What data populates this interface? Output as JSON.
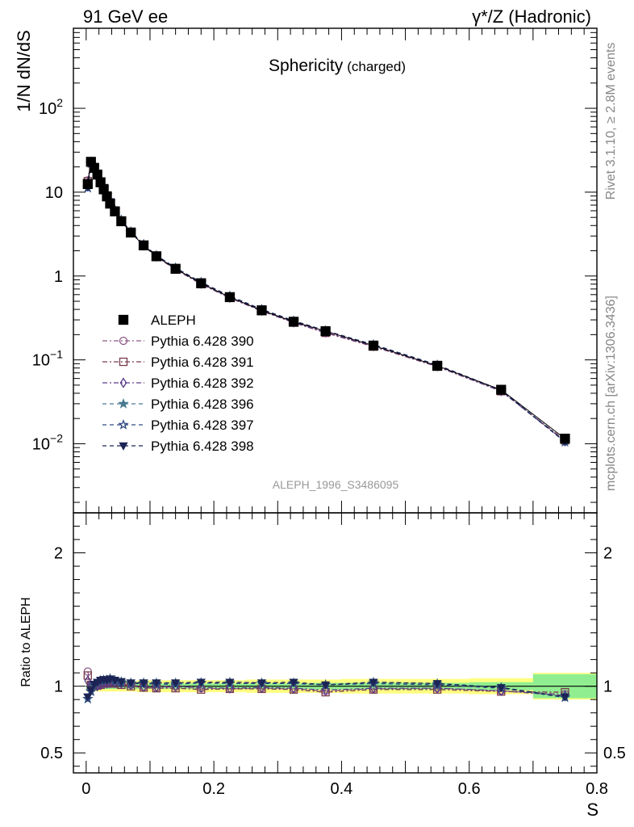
{
  "header": {
    "left": "91 GeV ee",
    "right": "γ*/Z (Hadronic)"
  },
  "side_text": {
    "rivet": "Rivet 3.1.10, ≥ 2.8M events",
    "mcplots": "mcplots.cern.ch [arXiv:1306.3436]"
  },
  "watermark": "ALEPH_1996_S3486095",
  "chart_data": [
    {
      "type": "scatter",
      "title": "Sphericity",
      "subtitle": "(charged)",
      "ylabel": "1/N dN/dS",
      "xlabel": "",
      "yscale": "log",
      "xlim": [
        -0.02,
        0.8
      ],
      "ylim": [
        0.0015,
        900
      ],
      "y_ticks": [
        0.01,
        0.1,
        1,
        10,
        100
      ],
      "y_tick_labels": [
        {
          "base": "10",
          "exp": "−2"
        },
        {
          "base": "10",
          "exp": "−1"
        },
        {
          "base": "1",
          "exp": ""
        },
        {
          "base": "10",
          "exp": ""
        },
        {
          "base": "10",
          "exp": "2"
        }
      ],
      "legend_placement": "middle-left",
      "x": [
        0.0025,
        0.0075,
        0.0125,
        0.0175,
        0.0225,
        0.0275,
        0.0325,
        0.0375,
        0.045,
        0.055,
        0.07,
        0.09,
        0.11,
        0.14,
        0.18,
        0.225,
        0.275,
        0.325,
        0.375,
        0.45,
        0.55,
        0.65,
        0.75
      ],
      "series": [
        {
          "name": "ALEPH",
          "color": "#000000",
          "marker": "filled-square",
          "dash": "",
          "values": [
            12.5,
            23,
            19.5,
            16.2,
            13.1,
            10.8,
            8.9,
            7.3,
            5.9,
            4.5,
            3.3,
            2.32,
            1.72,
            1.22,
            0.82,
            0.56,
            0.39,
            0.285,
            0.22,
            0.148,
            0.085,
            0.044,
            0.0115
          ]
        },
        {
          "name": "Pythia 6.428 390",
          "color": "#8e5a88",
          "marker": "open-circle",
          "dash": "6,3,2,3",
          "values": [
            13.8,
            23.3,
            19.6,
            16.4,
            13.3,
            11.1,
            9.2,
            7.6,
            6.1,
            4.6,
            3.34,
            2.32,
            1.7,
            1.21,
            0.81,
            0.55,
            0.385,
            0.28,
            0.212,
            0.145,
            0.084,
            0.0425,
            0.0108
          ]
        },
        {
          "name": "Pythia 6.428 391",
          "color": "#7a3c4e",
          "marker": "open-square",
          "dash": "6,3,2,3",
          "values": [
            13.5,
            23.2,
            19.5,
            16.3,
            13.2,
            11.0,
            9.1,
            7.5,
            6.0,
            4.55,
            3.3,
            2.3,
            1.69,
            1.2,
            0.8,
            0.548,
            0.382,
            0.278,
            0.21,
            0.144,
            0.083,
            0.0423,
            0.011
          ]
        },
        {
          "name": "Pythia 6.428 392",
          "color": "#5a3a8a",
          "marker": "open-diamond",
          "dash": "6,3,2,3",
          "values": [
            13.0,
            23.0,
            19.4,
            16.2,
            13.2,
            11.0,
            9.1,
            7.5,
            6.05,
            4.6,
            3.33,
            2.31,
            1.71,
            1.22,
            0.81,
            0.552,
            0.386,
            0.281,
            0.213,
            0.146,
            0.084,
            0.0425,
            0.0107
          ]
        },
        {
          "name": "Pythia 6.428 396",
          "color": "#4a7a90",
          "marker": "filled-star",
          "dash": "5,4",
          "values": [
            11.3,
            22.2,
            19.7,
            16.6,
            13.6,
            11.3,
            9.3,
            7.7,
            6.15,
            4.65,
            3.38,
            2.38,
            1.76,
            1.25,
            0.84,
            0.575,
            0.4,
            0.292,
            0.222,
            0.152,
            0.087,
            0.0435,
            0.0106
          ]
        },
        {
          "name": "Pythia 6.428 397",
          "color": "#2f4a80",
          "marker": "open-star",
          "dash": "5,4",
          "values": [
            11.2,
            22.0,
            19.6,
            16.6,
            13.6,
            11.3,
            9.3,
            7.7,
            6.1,
            4.62,
            3.36,
            2.37,
            1.75,
            1.24,
            0.84,
            0.572,
            0.398,
            0.29,
            0.222,
            0.151,
            0.086,
            0.0432,
            0.0105
          ]
        },
        {
          "name": "Pythia 6.428 398",
          "color": "#1c2455",
          "marker": "filled-down-triangle",
          "dash": "5,4",
          "values": [
            11.5,
            22.3,
            19.8,
            16.7,
            13.7,
            11.4,
            9.3,
            7.7,
            6.15,
            4.66,
            3.38,
            2.38,
            1.76,
            1.25,
            0.843,
            0.576,
            0.4,
            0.293,
            0.222,
            0.152,
            0.087,
            0.0434,
            0.0106
          ]
        }
      ]
    },
    {
      "type": "line",
      "ylabel": "Ratio to ALEPH",
      "xlabel": "S",
      "xlim": [
        -0.02,
        0.8
      ],
      "ylim": [
        0.35,
        2.3
      ],
      "y_ticks": [
        0.5,
        1,
        2
      ],
      "y_tick_labels": [
        "0.5",
        "1",
        "2"
      ],
      "x_ticks": [
        0,
        0.2,
        0.4,
        0.6,
        0.8
      ],
      "x_tick_labels": [
        "0",
        "0.2",
        "0.4",
        "0.6",
        "0.8"
      ],
      "bands": {
        "edges": [
          0,
          0.005,
          0.01,
          0.015,
          0.02,
          0.025,
          0.03,
          0.035,
          0.04,
          0.05,
          0.06,
          0.08,
          0.1,
          0.12,
          0.16,
          0.2,
          0.25,
          0.3,
          0.35,
          0.4,
          0.5,
          0.6,
          0.7,
          0.8
        ],
        "inner": [
          0.02,
          0.02,
          0.02,
          0.02,
          0.02,
          0.02,
          0.02,
          0.02,
          0.02,
          0.02,
          0.02,
          0.02,
          0.02,
          0.02,
          0.02,
          0.02,
          0.02,
          0.02,
          0.025,
          0.025,
          0.025,
          0.03,
          0.09
        ],
        "outer": [
          0.04,
          0.04,
          0.04,
          0.04,
          0.04,
          0.04,
          0.04,
          0.04,
          0.04,
          0.04,
          0.04,
          0.045,
          0.045,
          0.045,
          0.045,
          0.045,
          0.05,
          0.05,
          0.05,
          0.055,
          0.055,
          0.06,
          0.1
        ],
        "inner_color": "#90ee90",
        "outer_color": "#ffff80"
      },
      "series": [
        {
          "name": "Pythia 6.428 390",
          "values": [
            1.11,
            1.01,
            1.0,
            1.01,
            1.015,
            1.03,
            1.03,
            1.035,
            1.035,
            1.02,
            1.01,
            0.995,
            0.99,
            0.995,
            0.985,
            0.98,
            0.985,
            0.98,
            0.965,
            0.98,
            0.985,
            0.965,
            0.94
          ]
        },
        {
          "name": "Pythia 6.428 391",
          "values": [
            1.08,
            1.01,
            1.0,
            1.005,
            1.01,
            1.02,
            1.02,
            1.03,
            1.02,
            1.01,
            1.0,
            0.99,
            0.985,
            0.985,
            0.975,
            0.98,
            0.98,
            0.975,
            0.955,
            0.975,
            0.975,
            0.96,
            0.955
          ]
        },
        {
          "name": "Pythia 6.428 392",
          "values": [
            1.04,
            1.0,
            0.995,
            1.0,
            1.01,
            1.02,
            1.02,
            1.025,
            1.025,
            1.02,
            1.01,
            0.995,
            0.995,
            1.0,
            0.99,
            0.985,
            0.99,
            0.985,
            0.97,
            0.985,
            0.985,
            0.965,
            0.93
          ]
        },
        {
          "name": "Pythia 6.428 396",
          "values": [
            0.905,
            0.965,
            1.01,
            1.025,
            1.04,
            1.045,
            1.045,
            1.055,
            1.045,
            1.035,
            1.025,
            1.025,
            1.025,
            1.025,
            1.025,
            1.03,
            1.025,
            1.025,
            1.01,
            1.03,
            1.02,
            0.99,
            0.92
          ]
        },
        {
          "name": "Pythia 6.428 397",
          "values": [
            0.905,
            0.96,
            1.005,
            1.025,
            1.04,
            1.045,
            1.045,
            1.055,
            1.035,
            1.025,
            1.02,
            1.02,
            1.015,
            1.015,
            1.025,
            1.02,
            1.02,
            1.02,
            1.01,
            1.02,
            1.01,
            0.985,
            0.915
          ]
        },
        {
          "name": "Pythia 6.428 398",
          "values": [
            0.92,
            0.97,
            1.015,
            1.03,
            1.045,
            1.05,
            1.045,
            1.055,
            1.045,
            1.035,
            1.025,
            1.025,
            1.025,
            1.025,
            1.03,
            1.03,
            1.025,
            1.03,
            1.01,
            1.03,
            1.02,
            0.99,
            0.92
          ]
        }
      ]
    }
  ]
}
